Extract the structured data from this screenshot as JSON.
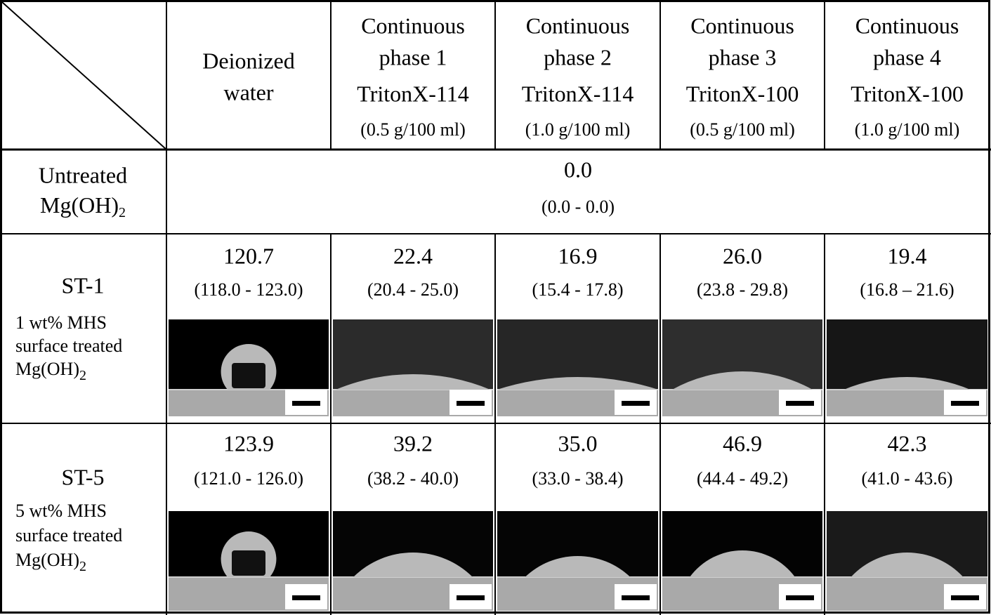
{
  "header": {
    "columns": [
      {
        "lines": [
          "Deionized",
          "water"
        ]
      },
      {
        "lines": [
          "Continuous",
          "phase 1",
          "TritonX-114"
        ],
        "concentration": "(0.5 g/100 ml)"
      },
      {
        "lines": [
          "Continuous",
          "phase 2",
          "TritonX-114"
        ],
        "concentration": "(1.0 g/100 ml)"
      },
      {
        "lines": [
          "Continuous",
          "phase 3",
          "TritonX-100"
        ],
        "concentration": "(0.5 g/100 ml)"
      },
      {
        "lines": [
          "Continuous",
          "phase 4",
          "TritonX-100"
        ],
        "concentration": "(1.0 g/100 ml)"
      }
    ]
  },
  "rows": [
    {
      "label": "Untreated",
      "formula": {
        "text": "Mg(OH)",
        "sub": "2"
      },
      "merged": {
        "value": "0.0",
        "range": "(0.0 - 0.0)"
      }
    },
    {
      "label": "ST-1",
      "description": [
        "1 wt% MHS",
        "surface treated"
      ],
      "formula": {
        "text": "Mg(OH)",
        "sub": "2"
      },
      "cells": [
        {
          "value": "120.7",
          "range": "(118.0 - 123.0)"
        },
        {
          "value": "22.4",
          "range": "(20.4 - 25.0)"
        },
        {
          "value": "16.9",
          "range": "(15.4 - 17.8)"
        },
        {
          "value": "26.0",
          "range": "(23.8 - 29.8)"
        },
        {
          "value": "19.4",
          "range": "(16.8 – 21.6)"
        }
      ]
    },
    {
      "label": "ST-5",
      "description": [
        "5 wt% MHS",
        "surface treated"
      ],
      "formula": {
        "text": "Mg(OH)",
        "sub": "2"
      },
      "cells": [
        {
          "value": "123.9",
          "range": "(121.0 - 126.0)"
        },
        {
          "value": "39.2",
          "range": "(38.2 - 40.0)"
        },
        {
          "value": "35.0",
          "range": "(33.0 - 38.4)"
        },
        {
          "value": "46.9",
          "range": "(44.4 - 49.2)"
        },
        {
          "value": "42.3",
          "range": "(41.0 - 43.6)"
        }
      ]
    }
  ]
}
